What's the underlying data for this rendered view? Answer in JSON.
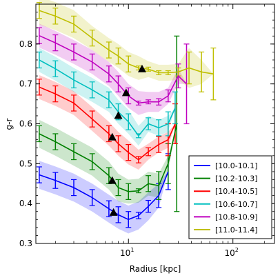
{
  "chart_data": {
    "type": "line",
    "xlabel": "Radius [kpc]",
    "ylabel": "g-r",
    "xscale": "log",
    "xlim": [
      1.3,
      250
    ],
    "ylim": [
      0.3,
      0.9
    ],
    "grid": false,
    "legend_position": "bottom-right",
    "x_ticks": [
      {
        "value": 10,
        "base": "10",
        "exp": "1"
      },
      {
        "value": 100,
        "base": "10",
        "exp": "2"
      }
    ],
    "y_ticks": [
      {
        "value": 0.3,
        "label": "0.3"
      },
      {
        "value": 0.4,
        "label": "0.4"
      },
      {
        "value": 0.5,
        "label": "0.5"
      },
      {
        "value": 0.6,
        "label": "0.6"
      },
      {
        "value": 0.7,
        "label": "0.7"
      },
      {
        "value": 0.8,
        "label": "0.8"
      }
    ],
    "series": [
      {
        "name": "[10.0-10.1]",
        "color": "#0000ff",
        "x": [
          1.4,
          2.0,
          3.0,
          4.5,
          6.5,
          8.0,
          10.0,
          12.5,
          15.5,
          19.5,
          24.0
        ],
        "y": [
          0.472,
          0.458,
          0.44,
          0.415,
          0.387,
          0.372,
          0.36,
          0.37,
          0.393,
          0.42,
          0.48
        ],
        "err": [
          0.02,
          0.02,
          0.02,
          0.02,
          0.02,
          0.02,
          0.02,
          0.008,
          0.015,
          0.03,
          0.045
        ],
        "band": [
          0.035,
          0.035,
          0.035,
          0.035,
          0.035,
          0.035,
          0.035,
          0.035,
          0.035,
          0.03,
          0.0
        ],
        "marker": {
          "x": 7.2,
          "y": 0.378
        }
      },
      {
        "name": "[10.2-10.3]",
        "color": "#008000",
        "x": [
          1.4,
          2.0,
          3.0,
          4.5,
          6.5,
          8.0,
          10.0,
          12.5,
          15.5,
          19.5,
          24.0,
          29.0
        ],
        "y": [
          0.575,
          0.555,
          0.53,
          0.505,
          0.47,
          0.44,
          0.43,
          0.432,
          0.45,
          0.445,
          0.5,
          0.6
        ],
        "err": [
          0.02,
          0.02,
          0.02,
          0.02,
          0.02,
          0.02,
          0.02,
          0.005,
          0.02,
          0.035,
          0.05,
          0.22
        ],
        "band": [
          0.035,
          0.035,
          0.035,
          0.035,
          0.035,
          0.035,
          0.03,
          0.03,
          0.03,
          0.03,
          0.02,
          0.0
        ],
        "marker": {
          "x": 7.0,
          "y": 0.458
        }
      },
      {
        "name": "[10.4-10.5]",
        "color": "#ff0000",
        "x": [
          1.4,
          2.0,
          3.0,
          4.5,
          6.5,
          8.0,
          10.0,
          12.5,
          15.5,
          19.5,
          24.0,
          28.0
        ],
        "y": [
          0.692,
          0.675,
          0.652,
          0.612,
          0.575,
          0.55,
          0.528,
          0.51,
          0.53,
          0.548,
          0.56,
          0.6
        ],
        "err": [
          0.02,
          0.02,
          0.02,
          0.02,
          0.02,
          0.02,
          0.02,
          0.008,
          0.01,
          0.02,
          0.04,
          0.05
        ],
        "band": [
          0.03,
          0.03,
          0.03,
          0.03,
          0.03,
          0.03,
          0.03,
          0.025,
          0.02,
          0.02,
          0.02,
          0.0
        ],
        "marker": {
          "x": 7.0,
          "y": 0.567
        }
      },
      {
        "name": "[10.6-10.7]",
        "color": "#00bfbf",
        "x": [
          1.4,
          2.0,
          3.0,
          4.5,
          6.5,
          8.0,
          10.0,
          12.5,
          15.5,
          19.5,
          24.0,
          28.0
        ],
        "y": [
          0.76,
          0.738,
          0.71,
          0.685,
          0.66,
          0.63,
          0.605,
          0.57,
          0.6,
          0.59,
          0.6,
          0.64
        ],
        "err": [
          0.02,
          0.02,
          0.02,
          0.02,
          0.02,
          0.02,
          0.02,
          0.005,
          0.015,
          0.02,
          0.03,
          0.04
        ],
        "band": [
          0.03,
          0.03,
          0.03,
          0.03,
          0.03,
          0.03,
          0.03,
          0.025,
          0.02,
          0.02,
          0.02,
          0.0
        ],
        "marker": {
          "x": 8.0,
          "y": 0.621
        }
      },
      {
        "name": "[10.8-10.9]",
        "color": "#bf00bf",
        "x": [
          1.4,
          2.0,
          3.0,
          4.5,
          6.5,
          8.0,
          10.0,
          12.5,
          15.5,
          19.5,
          24.0,
          30.0,
          36.0
        ],
        "y": [
          0.821,
          0.803,
          0.78,
          0.755,
          0.725,
          0.7,
          0.67,
          0.652,
          0.655,
          0.655,
          0.67,
          0.72,
          0.7
        ],
        "err": [
          0.02,
          0.02,
          0.02,
          0.02,
          0.02,
          0.02,
          0.02,
          0.005,
          0.005,
          0.008,
          0.015,
          0.03,
          0.1
        ],
        "band": [
          0.03,
          0.03,
          0.03,
          0.03,
          0.03,
          0.03,
          0.03,
          0.03,
          0.025,
          0.025,
          0.02,
          0.02,
          0.0
        ],
        "marker": {
          "x": 9.5,
          "y": 0.678
        }
      },
      {
        "name": "[11.0-11.4]",
        "color": "#bfbf00",
        "x": [
          1.4,
          2.0,
          3.0,
          4.5,
          6.5,
          8.0,
          10.0,
          12.5,
          15.5,
          19.5,
          24.0,
          30.0,
          38.0,
          50.0,
          65.0
        ],
        "y": [
          0.884,
          0.87,
          0.85,
          0.815,
          0.785,
          0.77,
          0.75,
          0.74,
          0.737,
          0.728,
          0.728,
          0.73,
          0.74,
          0.73,
          0.725
        ],
        "err": [
          0.02,
          0.02,
          0.02,
          0.02,
          0.02,
          0.02,
          0.02,
          0.005,
          0.005,
          0.005,
          0.005,
          0.01,
          0.04,
          0.05,
          0.065
        ],
        "band": [
          0.035,
          0.035,
          0.035,
          0.03,
          0.03,
          0.03,
          0.03,
          0.03,
          0.02,
          0.02,
          0.02,
          0.02,
          0.05,
          0.03,
          0.0
        ],
        "marker": {
          "x": 13.5,
          "y": 0.738
        }
      }
    ]
  }
}
